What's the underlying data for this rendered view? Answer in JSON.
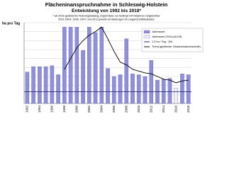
{
  "chart_data": {
    "type": "bar",
    "title": "Flächeninanspruchnahme in Schleswig-Holstein",
    "subtitle": "Entwicklung von 1992 bis 2018*",
    "notes": [
      "* ab 2016 geänderter Nutzungskatalog, Ergebnisse nur bedingt mit Vorjahren vergleichbar",
      "2001-2004, 2006, 2007 und 2011 jeweils Umstellungen im Liegenschaftskataster"
    ],
    "y_label": "ha pro Tag",
    "categories": [
      "1992",
      null,
      "1994",
      null,
      "1996",
      null,
      "1998",
      null,
      "2000",
      null,
      "2002",
      null,
      "2004",
      null,
      "2006",
      null,
      "2008",
      null,
      "2010",
      null,
      "2012",
      null,
      "2014",
      null,
      "2016",
      null,
      "2018"
    ],
    "series": [
      {
        "name": "Jahreswert",
        "color": "#8f8fdc",
        "values": [
          3.5,
          4.1,
          4.1,
          4.1,
          4.2,
          3.2,
          8.5,
          8.5,
          8.5,
          5.9,
          8.5,
          7.9,
          8.5,
          3.9,
          3.0,
          3.2,
          7.2,
          3.3,
          3.2,
          3.0,
          4.8,
          2.6,
          2.7,
          2.8,
          null,
          3.3,
          3.2
        ]
      },
      {
        "name": "Jahreswert 2016 (ALKIS)",
        "color": "#c8c8f0",
        "values": [
          null,
          null,
          null,
          null,
          null,
          null,
          null,
          null,
          null,
          null,
          null,
          null,
          null,
          null,
          null,
          null,
          null,
          null,
          null,
          null,
          null,
          null,
          null,
          null,
          1.7,
          null,
          null
        ]
      },
      {
        "name": "Trend (gleitender Vierjahresdurchschnitt)",
        "type": "line",
        "color": "#000000",
        "values": [
          null,
          null,
          null,
          null,
          null,
          null,
          3.8,
          5.0,
          6.2,
          7.0,
          7.6,
          8.0,
          8.5,
          7.2,
          5.8,
          4.6,
          4.3,
          3.8,
          3.6,
          3.4,
          3.3,
          3.0,
          2.7,
          2.6,
          2.3,
          2.5,
          2.6
        ]
      }
    ],
    "target": {
      "name": "1,3 ha / Tag - Ziel",
      "value": 1.3,
      "color": "#1a1a6e"
    },
    "ylim": [
      0,
      9
    ],
    "yticks": [
      0,
      1,
      2,
      3,
      4,
      5,
      6,
      7,
      8,
      9
    ],
    "grid": true
  }
}
